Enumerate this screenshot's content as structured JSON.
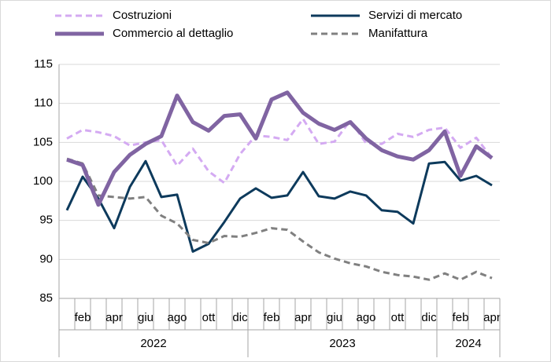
{
  "chart_data": {
    "type": "line",
    "categories": [
      null,
      "feb",
      null,
      "apr",
      null,
      "giu",
      null,
      "ago",
      null,
      "ott",
      null,
      "dic",
      null,
      "feb",
      null,
      "apr",
      null,
      "giu",
      null,
      "ago",
      null,
      "ott",
      null,
      "dic",
      null,
      "feb",
      null,
      "apr"
    ],
    "year_groups": [
      "2022",
      "2023",
      "2024"
    ],
    "ylim": [
      85,
      115
    ],
    "yticks": [
      85,
      90,
      95,
      100,
      105,
      110,
      115
    ],
    "grid": true,
    "series": [
      {
        "name": "Costruzioni",
        "color": "#d4aaf2",
        "dashed": true,
        "line_width": 3,
        "values": [
          105.5,
          106.6,
          106.3,
          105.8,
          104.6,
          105.0,
          105.3,
          102.0,
          104.2,
          101.3,
          99.8,
          103.5,
          105.9,
          105.7,
          105.3,
          108.0,
          104.8,
          105.1,
          107.8,
          104.9,
          104.8,
          106.1,
          105.7,
          106.6,
          106.9,
          104.3,
          105.6,
          103.0
        ]
      },
      {
        "name": "Servizi di mercato",
        "color": "#0d3a5c",
        "dashed": false,
        "line_width": 3,
        "values": [
          96.3,
          100.6,
          97.8,
          94.0,
          99.3,
          102.6,
          98.0,
          98.3,
          91.0,
          92.0,
          94.8,
          97.8,
          99.1,
          97.9,
          98.2,
          101.2,
          98.1,
          97.8,
          98.7,
          98.2,
          96.3,
          96.1,
          94.6,
          102.3,
          102.5,
          100.1,
          100.7,
          99.5
        ]
      },
      {
        "name": "Commercio al dettaglio",
        "color": "#8064a2",
        "dashed": false,
        "line_width": 5,
        "values": [
          102.8,
          102.1,
          97.0,
          101.2,
          103.4,
          104.8,
          105.8,
          111.0,
          107.6,
          106.5,
          108.4,
          108.6,
          105.5,
          110.5,
          111.4,
          108.8,
          107.4,
          106.6,
          107.6,
          105.5,
          104.0,
          103.2,
          102.8,
          104.0,
          106.4,
          100.7,
          104.5,
          103.0
        ]
      },
      {
        "name": "Manifattura",
        "color": "#808080",
        "dashed": true,
        "line_width": 3,
        "values": [
          102.9,
          102.3,
          98.2,
          98.0,
          97.8,
          98.0,
          95.6,
          94.6,
          92.5,
          92.1,
          93.0,
          92.9,
          93.4,
          94.0,
          93.8,
          92.3,
          90.9,
          90.1,
          89.5,
          89.1,
          88.4,
          88.0,
          87.8,
          87.4,
          88.2,
          87.4,
          88.4,
          87.6
        ]
      }
    ]
  }
}
